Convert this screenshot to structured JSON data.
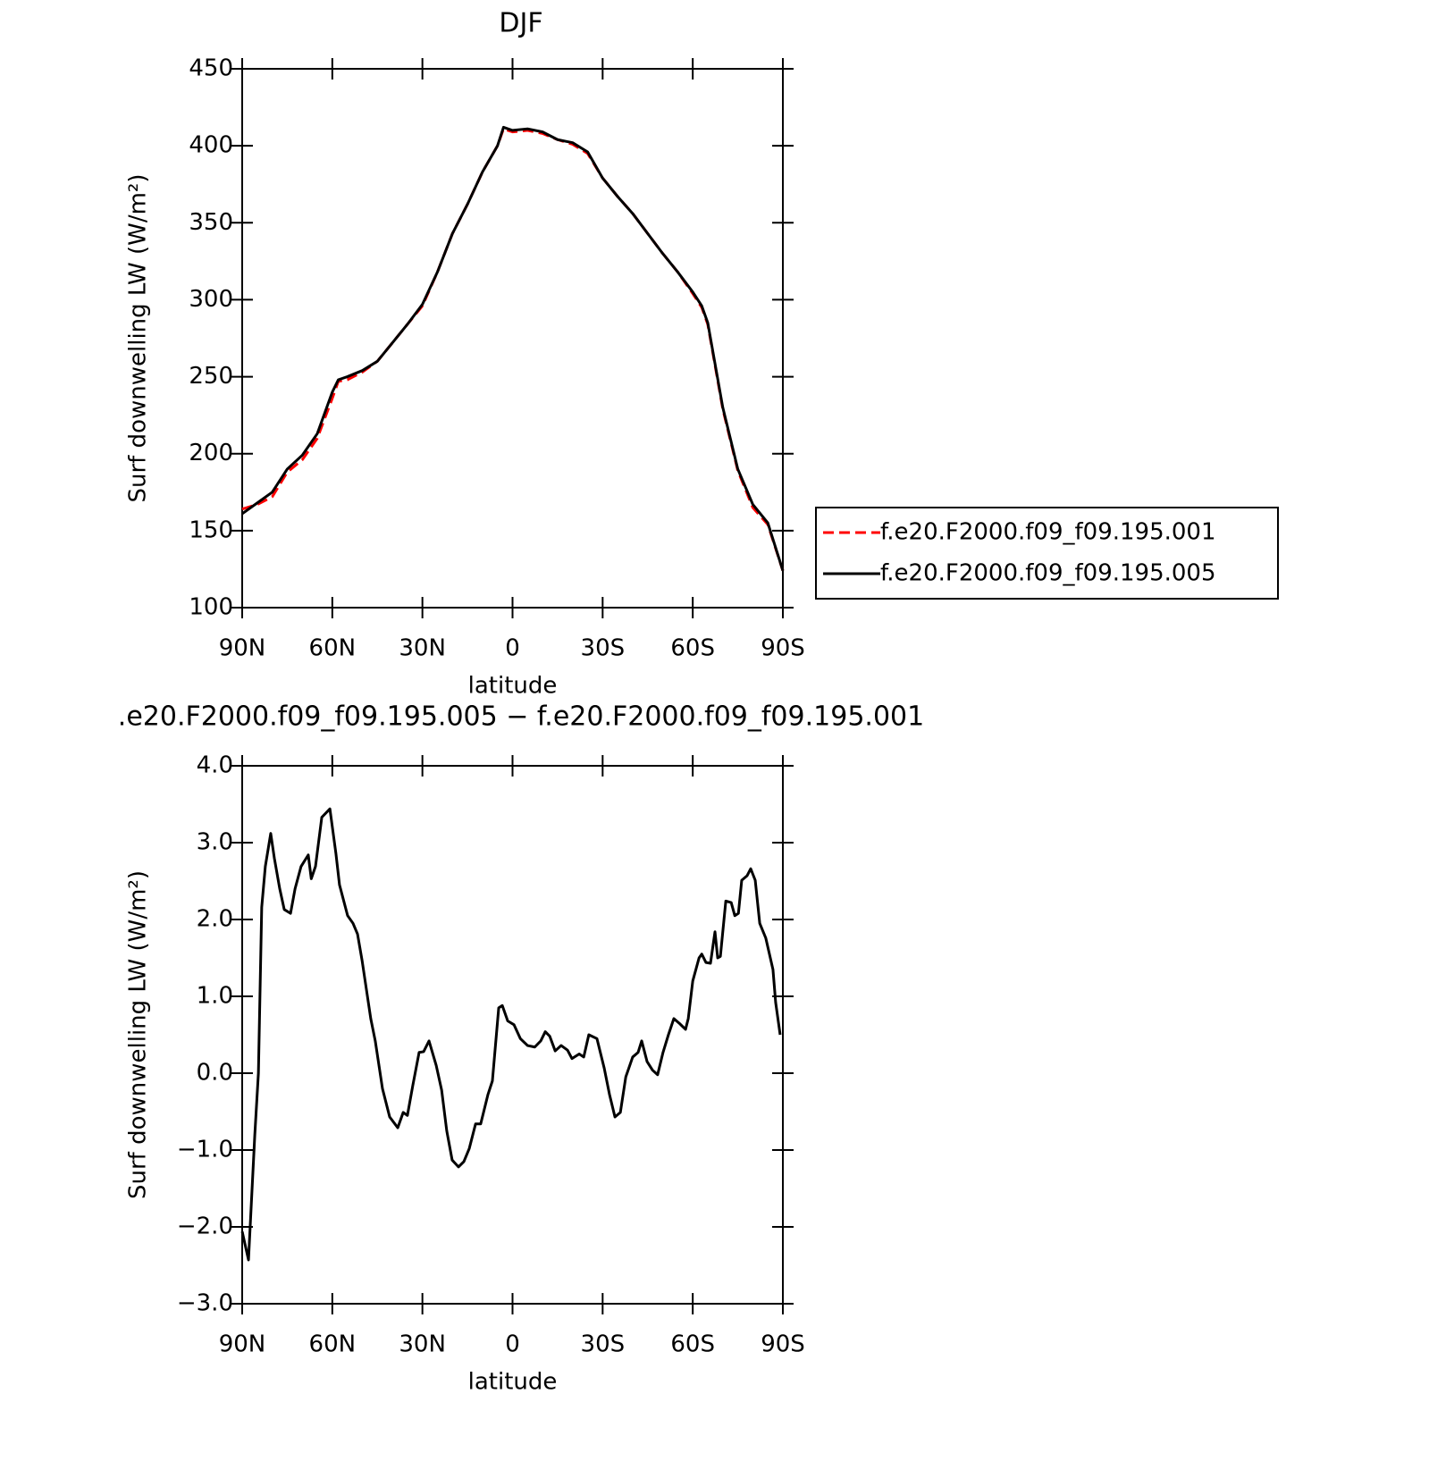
{
  "chart_data": [
    {
      "type": "line",
      "title": "DJF",
      "xlabel": "latitude",
      "ylabel": "Surf downwelling LW (W/m²)",
      "x": [
        90,
        85,
        80,
        75,
        70,
        65,
        60,
        58,
        55,
        50,
        45,
        40,
        35,
        30,
        25,
        20,
        15,
        10,
        5,
        3,
        0,
        -5,
        -10,
        -15,
        -20,
        -25,
        -30,
        -35,
        -40,
        -45,
        -50,
        -55,
        -60,
        -63,
        -65,
        -70,
        -75,
        -80,
        -85,
        -90
      ],
      "series": [
        {
          "name": "f.e20.F2000.f09_f09.195.001",
          "color": "#ff0000",
          "dash": true,
          "values": [
            164,
            167,
            172,
            188,
            196,
            210,
            236,
            247,
            248,
            253,
            260,
            272,
            284,
            296,
            318,
            343,
            362,
            383,
            400,
            411,
            409,
            410,
            408,
            404,
            401,
            395,
            379,
            367,
            356,
            343,
            330,
            318,
            304,
            295,
            284,
            229,
            189,
            165,
            154,
            124
          ]
        },
        {
          "name": "f.e20.F2000.f09_f09.195.005",
          "color": "#000000",
          "dash": false,
          "values": [
            161,
            168,
            175,
            190,
            199,
            213,
            240,
            248,
            250,
            254,
            260,
            272,
            284,
            297,
            318,
            343,
            362,
            383,
            400,
            412,
            410,
            411,
            409,
            404,
            402,
            396,
            379,
            367,
            356,
            343,
            330,
            318,
            305,
            296,
            285,
            230,
            190,
            167,
            155,
            124
          ]
        }
      ],
      "xlim": [
        90,
        -90
      ],
      "xticks": [
        {
          "value": 90,
          "label": "90N"
        },
        {
          "value": 60,
          "label": "60N"
        },
        {
          "value": 30,
          "label": "30N"
        },
        0,
        {
          "value": -30,
          "label": "30S"
        },
        {
          "value": -60,
          "label": "60S"
        },
        {
          "value": -90,
          "label": "90S"
        }
      ],
      "ylim": [
        100,
        450
      ],
      "yticks": [
        100,
        150,
        200,
        250,
        300,
        350,
        400,
        450
      ],
      "legend": "right"
    },
    {
      "type": "line",
      "title": ".e20.F2000.f09_f09.195.005 − f.e20.F2000.f09_f09.195.001",
      "xlabel": "latitude",
      "ylabel": "Surf downwelling LW (W/m²)",
      "x": [
        90,
        87.9,
        85.8,
        84.6,
        83.5,
        82.3,
        80.5,
        79.3,
        77.5,
        76,
        73.9,
        72.4,
        70.4,
        68,
        67,
        65.6,
        63.5,
        60.8,
        58.8,
        57.6,
        54.9,
        53.1,
        51.6,
        50.1,
        47.2,
        45.7,
        43.3,
        40.9,
        38.2,
        36.4,
        35,
        33.2,
        31.1,
        29.6,
        27.8,
        25.4,
        23.6,
        21.9,
        20.1,
        18,
        16.2,
        14.4,
        12.3,
        10.6,
        8.2,
        6.7,
        4.6,
        3.4,
        1.6,
        -0.5,
        -2.6,
        -5,
        -7.4,
        -9.4,
        -10.9,
        -12.4,
        -14.2,
        -16.2,
        -18.3,
        -19.8,
        -22.2,
        -23.7,
        -25.4,
        -28.1,
        -30.5,
        -32.3,
        -34.1,
        -35.9,
        -37.7,
        -40,
        -41.8,
        -43,
        -44.8,
        -46.6,
        -48.3,
        -50.1,
        -51.9,
        -53.7,
        -55.5,
        -57.6,
        -58.5,
        -60,
        -62.1,
        -63,
        -64.4,
        -65.9,
        -67.4,
        -68.3,
        -69.2,
        -71,
        -72.8,
        -74,
        -75.2,
        -76.3,
        -78.1,
        -79.3,
        -80.8,
        -82.3,
        -84.3,
        -86.7,
        -87.6,
        -89.1
      ],
      "series": [
        {
          "name": "f.e20.F2000.f09_f09.195.005 - f.e20.F2000.f09_f09.195.001",
          "color": "#000000",
          "dash": false,
          "values": [
            -2.06,
            -2.43,
            -0.8,
            0,
            2.16,
            2.69,
            3.12,
            2.8,
            2.4,
            2.13,
            2.08,
            2.4,
            2.69,
            2.84,
            2.53,
            2.69,
            3.33,
            3.44,
            2.86,
            2.45,
            2.05,
            1.95,
            1.81,
            1.47,
            0.71,
            0.42,
            -0.2,
            -0.57,
            -0.71,
            -0.51,
            -0.55,
            -0.16,
            0.27,
            0.28,
            0.42,
            0.1,
            -0.22,
            -0.75,
            -1.13,
            -1.22,
            -1.15,
            -0.98,
            -0.66,
            -0.66,
            -0.28,
            -0.1,
            0.85,
            0.88,
            0.68,
            0.63,
            0.45,
            0.36,
            0.34,
            0.42,
            0.54,
            0.48,
            0.29,
            0.36,
            0.3,
            0.19,
            0.25,
            0.21,
            0.5,
            0.45,
            0.07,
            -0.28,
            -0.57,
            -0.51,
            -0.05,
            0.21,
            0.27,
            0.42,
            0.15,
            0.04,
            -0.02,
            0.27,
            0.5,
            0.71,
            0.65,
            0.57,
            0.71,
            1.2,
            1.5,
            1.55,
            1.44,
            1.43,
            1.84,
            1.5,
            1.52,
            2.24,
            2.22,
            2.05,
            2.08,
            2.51,
            2.57,
            2.66,
            2.51,
            1.95,
            1.76,
            1.35,
            0.92,
            0.5
          ]
        }
      ],
      "xlim": [
        90,
        -90
      ],
      "xticks": [
        {
          "value": 90,
          "label": "90N"
        },
        {
          "value": 60,
          "label": "60N"
        },
        {
          "value": 30,
          "label": "30N"
        },
        0,
        {
          "value": -30,
          "label": "30S"
        },
        {
          "value": -60,
          "label": "60S"
        },
        {
          "value": -90,
          "label": "90S"
        }
      ],
      "ylim": [
        -3,
        4
      ],
      "yticks": [
        {
          "value": -3,
          "label": "−3.0"
        },
        {
          "value": -2,
          "label": "−2.0"
        },
        {
          "value": -1,
          "label": "−1.0"
        },
        {
          "value": 0,
          "label": "0.0"
        },
        {
          "value": 1,
          "label": "1.0"
        },
        {
          "value": 2,
          "label": "2.0"
        },
        {
          "value": 3,
          "label": "3.0"
        },
        {
          "value": 4,
          "label": "4.0"
        }
      ]
    }
  ]
}
